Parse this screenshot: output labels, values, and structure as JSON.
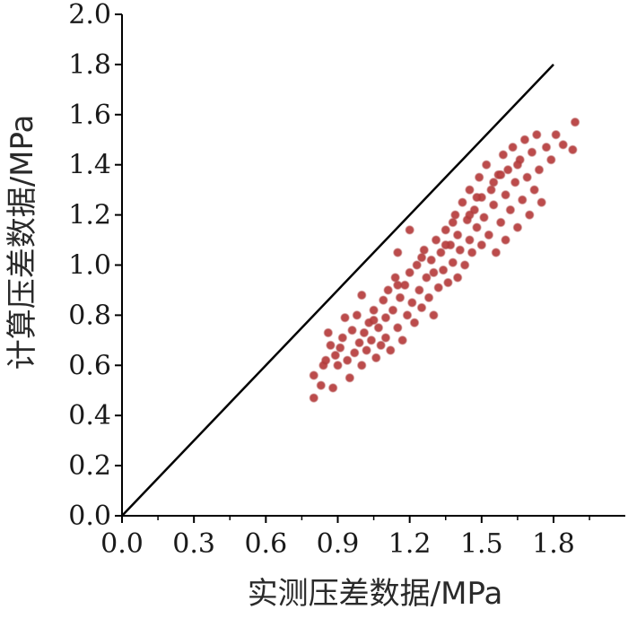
{
  "chart_data": {
    "type": "scatter",
    "xlabel": "实测压差数据/MPa",
    "ylabel": "计算压差数据/MPa",
    "xlim": [
      0.0,
      2.1
    ],
    "ylim": [
      0.0,
      2.0
    ],
    "x_ticks": [
      "0.0",
      "0.3",
      "0.6",
      "0.9",
      "1.2",
      "1.5",
      "1.8"
    ],
    "y_ticks": [
      "0.0",
      "0.2",
      "0.4",
      "0.6",
      "0.8",
      "1.0",
      "1.2",
      "1.4",
      "1.6",
      "1.8",
      "2.0"
    ],
    "grid": false,
    "reference_line": {
      "x": [
        0.0,
        1.8
      ],
      "y": [
        0.0,
        1.8
      ]
    },
    "point_color": "#b03a3a",
    "line_color": "#000000",
    "points": [
      [
        0.8,
        0.47
      ],
      [
        0.8,
        0.56
      ],
      [
        0.83,
        0.52
      ],
      [
        0.84,
        0.6
      ],
      [
        0.85,
        0.62
      ],
      [
        0.86,
        0.73
      ],
      [
        0.87,
        0.68
      ],
      [
        0.88,
        0.51
      ],
      [
        0.89,
        0.64
      ],
      [
        0.9,
        0.6
      ],
      [
        0.91,
        0.67
      ],
      [
        0.92,
        0.71
      ],
      [
        0.93,
        0.79
      ],
      [
        0.94,
        0.62
      ],
      [
        0.95,
        0.55
      ],
      [
        0.96,
        0.74
      ],
      [
        0.97,
        0.65
      ],
      [
        0.98,
        0.8
      ],
      [
        0.99,
        0.69
      ],
      [
        1.0,
        0.6
      ],
      [
        1.0,
        0.88
      ],
      [
        1.01,
        0.73
      ],
      [
        1.02,
        0.66
      ],
      [
        1.03,
        0.77
      ],
      [
        1.04,
        0.7
      ],
      [
        1.05,
        0.82
      ],
      [
        1.06,
        0.63
      ],
      [
        1.07,
        0.75
      ],
      [
        1.08,
        0.68
      ],
      [
        1.09,
        0.86
      ],
      [
        1.1,
        0.79
      ],
      [
        1.1,
        0.71
      ],
      [
        1.11,
        0.9
      ],
      [
        1.12,
        0.66
      ],
      [
        1.13,
        0.82
      ],
      [
        1.14,
        0.95
      ],
      [
        1.15,
        0.75
      ],
      [
        1.15,
        1.05
      ],
      [
        1.16,
        0.87
      ],
      [
        1.17,
        0.7
      ],
      [
        1.18,
        0.92
      ],
      [
        1.19,
        0.8
      ],
      [
        1.2,
        0.97
      ],
      [
        1.2,
        1.14
      ],
      [
        1.21,
        0.85
      ],
      [
        1.22,
        0.77
      ],
      [
        1.23,
        1.0
      ],
      [
        1.24,
        0.9
      ],
      [
        1.25,
        0.83
      ],
      [
        1.26,
        1.06
      ],
      [
        1.27,
        0.95
      ],
      [
        1.28,
        0.87
      ],
      [
        1.29,
        1.02
      ],
      [
        1.3,
        0.8
      ],
      [
        1.3,
        0.97
      ],
      [
        1.31,
        1.1
      ],
      [
        1.32,
        0.91
      ],
      [
        1.33,
        1.05
      ],
      [
        1.34,
        0.98
      ],
      [
        1.35,
        1.14
      ],
      [
        1.36,
        0.93
      ],
      [
        1.37,
        1.08
      ],
      [
        1.38,
        1.01
      ],
      [
        1.39,
        1.2
      ],
      [
        1.4,
        1.12
      ],
      [
        1.4,
        0.95
      ],
      [
        1.41,
        1.06
      ],
      [
        1.42,
        1.25
      ],
      [
        1.43,
        1.0
      ],
      [
        1.44,
        1.18
      ],
      [
        1.45,
        1.3
      ],
      [
        1.45,
        1.1
      ],
      [
        1.46,
        1.05
      ],
      [
        1.47,
        1.22
      ],
      [
        1.48,
        1.15
      ],
      [
        1.49,
        1.35
      ],
      [
        1.5,
        1.08
      ],
      [
        1.5,
        1.27
      ],
      [
        1.51,
        1.19
      ],
      [
        1.52,
        1.4
      ],
      [
        1.53,
        1.12
      ],
      [
        1.54,
        1.3
      ],
      [
        1.55,
        1.24
      ],
      [
        1.56,
        1.05
      ],
      [
        1.57,
        1.36
      ],
      [
        1.58,
        1.17
      ],
      [
        1.59,
        1.44
      ],
      [
        1.6,
        1.28
      ],
      [
        1.6,
        1.1
      ],
      [
        1.61,
        1.38
      ],
      [
        1.62,
        1.22
      ],
      [
        1.63,
        1.47
      ],
      [
        1.64,
        1.33
      ],
      [
        1.65,
        1.15
      ],
      [
        1.66,
        1.42
      ],
      [
        1.67,
        1.26
      ],
      [
        1.68,
        1.5
      ],
      [
        1.69,
        1.35
      ],
      [
        1.7,
        1.2
      ],
      [
        1.71,
        1.45
      ],
      [
        1.72,
        1.3
      ],
      [
        1.73,
        1.52
      ],
      [
        1.74,
        1.38
      ],
      [
        1.75,
        1.25
      ],
      [
        1.77,
        1.47
      ],
      [
        1.79,
        1.42
      ],
      [
        1.81,
        1.52
      ],
      [
        1.84,
        1.48
      ],
      [
        1.88,
        1.46
      ],
      [
        1.89,
        1.57
      ],
      [
        1.25,
        1.03
      ],
      [
        1.35,
        1.08
      ],
      [
        1.45,
        1.2
      ],
      [
        1.55,
        1.33
      ],
      [
        1.65,
        1.4
      ],
      [
        1.05,
        0.78
      ],
      [
        1.15,
        0.92
      ],
      [
        1.38,
        1.17
      ],
      [
        1.48,
        1.27
      ],
      [
        1.58,
        1.36
      ]
    ]
  }
}
